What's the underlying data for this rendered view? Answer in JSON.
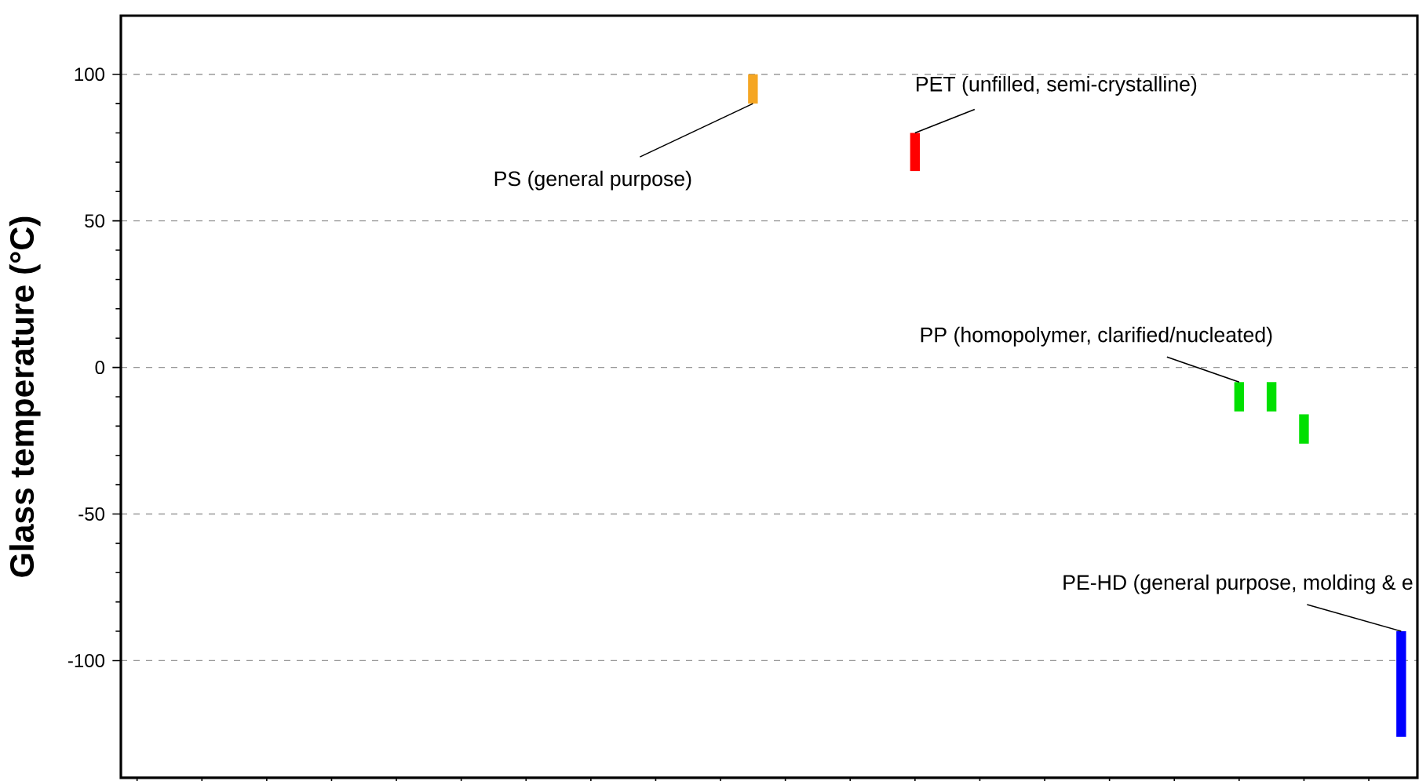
{
  "chart_data": {
    "type": "bar",
    "ylabel": "Glass temperature (°C)",
    "categories": [
      null,
      null,
      null,
      null,
      null,
      null,
      null,
      null,
      null,
      null,
      null,
      null,
      null,
      null,
      null,
      null,
      null,
      null,
      null,
      null,
      null,
      null,
      null,
      null,
      null,
      null,
      null,
      null,
      null,
      null,
      null,
      null,
      null,
      null,
      null,
      null,
      null,
      null,
      null,
      null
    ],
    "series": [
      {
        "name": "PS (general purpose)",
        "color": "#f5a623",
        "values": [
          null,
          null,
          null,
          null,
          null,
          null,
          null,
          null,
          null,
          null,
          null,
          null,
          null,
          null,
          null,
          null,
          null,
          null,
          null,
          10,
          null,
          null,
          null,
          null,
          null,
          null,
          null,
          null,
          null,
          null,
          null,
          null,
          null,
          null,
          null,
          null,
          null,
          null,
          null,
          null
        ],
        "base": [
          null,
          null,
          null,
          null,
          null,
          null,
          null,
          null,
          null,
          null,
          null,
          null,
          null,
          null,
          null,
          null,
          null,
          null,
          null,
          90,
          null,
          null,
          null,
          null,
          null,
          null,
          null,
          null,
          null,
          null,
          null,
          null,
          null,
          null,
          null,
          null,
          null,
          null,
          null,
          null
        ]
      },
      {
        "name": "PET (unfilled, semi-crystalline)",
        "color": "#ff0000",
        "values": [
          null,
          null,
          null,
          null,
          null,
          null,
          null,
          null,
          null,
          null,
          null,
          null,
          null,
          null,
          null,
          null,
          null,
          null,
          null,
          null,
          null,
          null,
          null,
          null,
          13,
          null,
          null,
          null,
          null,
          null,
          null,
          null,
          null,
          null,
          null,
          null,
          null,
          null,
          null,
          null
        ],
        "base": [
          null,
          null,
          null,
          null,
          null,
          null,
          null,
          null,
          null,
          null,
          null,
          null,
          null,
          null,
          null,
          null,
          null,
          null,
          null,
          null,
          null,
          null,
          null,
          null,
          67,
          null,
          null,
          null,
          null,
          null,
          null,
          null,
          null,
          null,
          null,
          null,
          null,
          null,
          null,
          null
        ]
      },
      {
        "name": "PP (homopolymer, clarified/nucleated)",
        "color": "#00e000",
        "values": [
          null,
          null,
          null,
          null,
          null,
          null,
          null,
          null,
          null,
          null,
          null,
          null,
          null,
          null,
          null,
          null,
          null,
          null,
          null,
          null,
          null,
          null,
          null,
          null,
          null,
          null,
          null,
          null,
          null,
          null,
          null,
          null,
          null,
          null,
          10,
          10,
          10,
          null,
          null,
          null
        ],
        "base": [
          null,
          null,
          null,
          null,
          null,
          null,
          null,
          null,
          null,
          null,
          null,
          null,
          null,
          null,
          null,
          null,
          null,
          null,
          null,
          null,
          null,
          null,
          null,
          null,
          null,
          null,
          null,
          null,
          null,
          null,
          null,
          null,
          null,
          null,
          -15,
          -15,
          -26,
          null,
          null,
          null
        ]
      },
      {
        "name": "PE-HD (general purpose, molding & e",
        "color": "#0000ff",
        "values": [
          null,
          null,
          null,
          null,
          null,
          null,
          null,
          null,
          null,
          null,
          null,
          null,
          null,
          null,
          null,
          null,
          null,
          null,
          null,
          null,
          null,
          null,
          null,
          null,
          null,
          null,
          null,
          null,
          null,
          null,
          null,
          null,
          null,
          null,
          null,
          null,
          null,
          null,
          null,
          36
        ],
        "base": [
          null,
          null,
          null,
          null,
          null,
          null,
          null,
          null,
          null,
          null,
          null,
          null,
          null,
          null,
          null,
          null,
          null,
          null,
          null,
          null,
          null,
          null,
          null,
          null,
          null,
          null,
          null,
          null,
          null,
          null,
          null,
          null,
          null,
          null,
          null,
          null,
          null,
          null,
          null,
          -126
        ]
      }
    ],
    "ylim": [
      -140,
      120
    ],
    "yticks": [
      -100,
      -50,
      0,
      50,
      100
    ],
    "grid": "y",
    "tick_labels": "y"
  }
}
